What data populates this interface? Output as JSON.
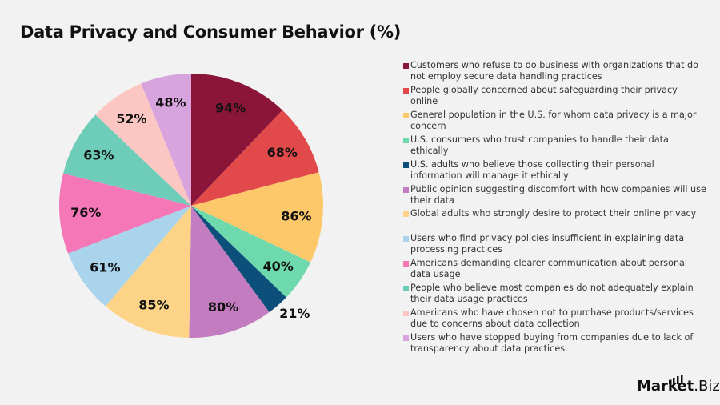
{
  "chart_data": {
    "type": "pie",
    "title": "Data Privacy and Consumer Behavior (%)",
    "legend_position": "right",
    "slices": [
      {
        "label": "Customers who refuse to do business with organizations that do not employ secure data handling practices",
        "value": 94,
        "display": "94%",
        "color": "#8B1538"
      },
      {
        "label": "People globally concerned about safeguarding their privacy online",
        "value": 68,
        "display": "68%",
        "color": "#E2494B"
      },
      {
        "label": "General population in the U.S. for whom data privacy is a major concern",
        "value": 86,
        "display": "86%",
        "color": "#FDC86A"
      },
      {
        "label": "U.S. consumers who trust companies to handle their data ethically",
        "value": 40,
        "display": "40%",
        "color": "#6FD9AE"
      },
      {
        "label": "U.S. adults who believe those collecting their personal information will manage it ethically",
        "value": 21,
        "display": "21%",
        "color": "#0C4F7B"
      },
      {
        "label": "Public opinion suggesting discomfort with how companies will use their data",
        "value": 80,
        "display": "80%",
        "color": "#C27CBF"
      },
      {
        "label": "Global adults who strongly desire to protect their online privacy",
        "value": 85,
        "display": "85%",
        "color": "#FDD487"
      },
      {
        "label": "Users who find privacy policies insufficient in explaining data processing practices",
        "value": 61,
        "display": "61%",
        "color": "#A9D4EC"
      },
      {
        "label": "Americans demanding clearer communication about personal data usage",
        "value": 76,
        "display": "76%",
        "color": "#F577B7"
      },
      {
        "label": "People who believe most companies do not adequately explain their data usage practices",
        "value": 63,
        "display": "63%",
        "color": "#6ECDB9"
      },
      {
        "label": "Americans who have chosen not to purchase products/services due to concerns about data collection",
        "value": 52,
        "display": "52%",
        "color": "#FCC7C2"
      },
      {
        "label": "Users who have stopped buying from companies due to lack of transparency about data practices",
        "value": 48,
        "display": "48%",
        "color": "#D8A4DD"
      }
    ]
  },
  "logo": {
    "text_main": "Market",
    "text_suffix": ".Biz"
  }
}
